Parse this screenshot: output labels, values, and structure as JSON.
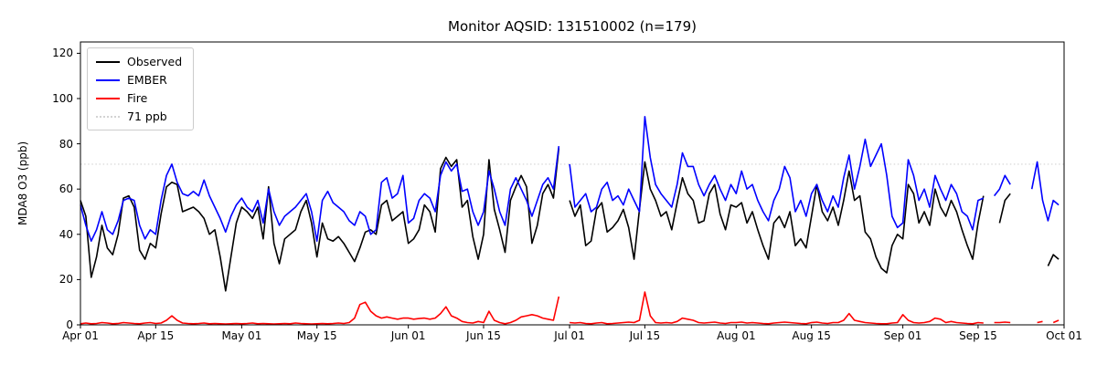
{
  "chart_data": {
    "type": "line",
    "title": "Monitor AQSID: 131510002 (n=179)",
    "ylabel": "MDA8 O3 (ppb)",
    "xlabel": "",
    "ylim": [
      0,
      125
    ],
    "xlim_days": [
      0,
      183
    ],
    "grid": false,
    "legend_position": "upper left",
    "y_ticks": [
      0,
      20,
      40,
      60,
      80,
      100,
      120
    ],
    "x_ticks": [
      {
        "day": 0,
        "label": "Apr 01"
      },
      {
        "day": 14,
        "label": "Apr 15"
      },
      {
        "day": 30,
        "label": "May 01"
      },
      {
        "day": 44,
        "label": "May 15"
      },
      {
        "day": 61,
        "label": "Jun 01"
      },
      {
        "day": 75,
        "label": "Jun 15"
      },
      {
        "day": 91,
        "label": "Jul 01"
      },
      {
        "day": 105,
        "label": "Jul 15"
      },
      {
        "day": 122,
        "label": "Aug 01"
      },
      {
        "day": 136,
        "label": "Aug 15"
      },
      {
        "day": 153,
        "label": "Sep 01"
      },
      {
        "day": 167,
        "label": "Sep 15"
      },
      {
        "day": 183,
        "label": "Oct 01"
      }
    ],
    "threshold": {
      "value": 71,
      "label": "71 ppb",
      "color": "#d3d3d3",
      "style": "dotted"
    },
    "legend": [
      {
        "label": "Observed",
        "color": "#000000",
        "style": "solid"
      },
      {
        "label": "EMBER",
        "color": "#0000ff",
        "style": "solid"
      },
      {
        "label": "Fire",
        "color": "#ff0000",
        "style": "solid"
      },
      {
        "label": "71 ppb",
        "color": "#d3d3d3",
        "style": "dotted"
      }
    ],
    "series": [
      {
        "name": "Observed",
        "color": "#000000",
        "values": [
          55,
          48,
          21,
          30,
          44,
          34,
          31,
          40,
          56,
          57,
          52,
          33,
          29,
          36,
          34,
          49,
          61,
          63,
          62,
          50,
          51,
          52,
          50,
          47,
          40,
          42,
          30,
          15,
          30,
          45,
          52,
          50,
          47,
          52,
          38,
          61,
          36,
          27,
          38,
          40,
          42,
          50,
          55,
          45,
          30,
          45,
          38,
          37,
          39,
          36,
          32,
          28,
          34,
          41,
          42,
          40,
          53,
          55,
          46,
          48,
          50,
          36,
          38,
          42,
          53,
          50,
          41,
          69,
          74,
          70,
          73,
          52,
          55,
          39,
          29,
          40,
          73,
          51,
          42,
          32,
          55,
          61,
          66,
          61,
          36,
          44,
          58,
          62,
          56,
          78,
          null,
          55,
          48,
          53,
          35,
          37,
          51,
          54,
          41,
          43,
          46,
          51,
          43,
          29,
          51,
          72,
          60,
          55,
          48,
          50,
          42,
          54,
          65,
          58,
          55,
          45,
          46,
          58,
          62,
          49,
          42,
          53,
          52,
          54,
          45,
          50,
          42,
          35,
          29,
          45,
          48,
          43,
          50,
          35,
          38,
          34,
          48,
          62,
          50,
          46,
          52,
          44,
          55,
          68,
          55,
          57,
          41,
          38,
          30,
          25,
          23,
          35,
          40,
          38,
          62,
          58,
          45,
          50,
          44,
          60,
          52,
          48,
          55,
          50,
          42,
          35,
          29,
          45,
          57,
          null,
          null,
          45,
          55,
          58,
          null,
          null,
          null,
          null,
          null,
          null,
          26,
          31,
          29
        ]
      },
      {
        "name": "EMBER",
        "color": "#0000ff",
        "values": [
          53,
          44,
          37,
          42,
          50,
          42,
          40,
          46,
          55,
          56,
          55,
          44,
          38,
          42,
          40,
          55,
          66,
          71,
          63,
          58,
          57,
          59,
          57,
          64,
          57,
          52,
          47,
          41,
          48,
          53,
          56,
          52,
          50,
          55,
          45,
          60,
          50,
          44,
          48,
          50,
          52,
          55,
          58,
          50,
          37,
          55,
          59,
          54,
          52,
          50,
          46,
          44,
          50,
          48,
          40,
          42,
          63,
          65,
          56,
          58,
          66,
          45,
          47,
          55,
          58,
          56,
          50,
          66,
          72,
          68,
          71,
          59,
          60,
          50,
          44,
          50,
          68,
          60,
          50,
          44,
          60,
          65,
          60,
          55,
          48,
          55,
          62,
          65,
          60,
          79,
          null,
          71,
          52,
          55,
          58,
          50,
          52,
          60,
          63,
          55,
          57,
          53,
          60,
          55,
          50,
          92,
          74,
          62,
          58,
          55,
          52,
          62,
          76,
          70,
          70,
          62,
          57,
          62,
          66,
          60,
          55,
          62,
          58,
          68,
          60,
          62,
          55,
          50,
          46,
          55,
          60,
          70,
          65,
          50,
          55,
          48,
          58,
          62,
          55,
          50,
          57,
          52,
          65,
          75,
          60,
          70,
          82,
          70,
          75,
          80,
          66,
          48,
          43,
          45,
          73,
          66,
          55,
          60,
          52,
          66,
          60,
          55,
          62,
          58,
          50,
          48,
          42,
          55,
          56,
          null,
          57,
          60,
          66,
          62,
          null,
          null,
          null,
          60,
          72,
          55,
          46,
          55,
          53
        ]
      },
      {
        "name": "Fire",
        "color": "#ff0000",
        "values": [
          0.5,
          0.8,
          0.5,
          0.6,
          1,
          0.8,
          0.5,
          0.6,
          1,
          0.8,
          0.6,
          0.5,
          0.8,
          1,
          0.6,
          0.8,
          2,
          4,
          2,
          0.8,
          0.6,
          0.5,
          0.6,
          0.8,
          0.5,
          0.6,
          0.5,
          0.4,
          0.5,
          0.6,
          0.5,
          0.6,
          0.8,
          0.5,
          0.6,
          0.5,
          0.4,
          0.5,
          0.6,
          0.5,
          0.8,
          0.6,
          0.5,
          0.4,
          0.5,
          0.6,
          0.5,
          0.6,
          0.8,
          0.6,
          1,
          3,
          9,
          10,
          6,
          4,
          3,
          3.5,
          3,
          2.5,
          3,
          3,
          2.5,
          2.8,
          3,
          2.5,
          3,
          5,
          8,
          4,
          3,
          1.5,
          1,
          0.8,
          1.5,
          1,
          6,
          2,
          1,
          0.5,
          1,
          2,
          3.5,
          4,
          4.5,
          4,
          3,
          2.5,
          2,
          12.5,
          null,
          1,
          0.8,
          1,
          0.6,
          0.5,
          0.8,
          1,
          0.5,
          0.6,
          0.8,
          1,
          1.2,
          1,
          2,
          14.5,
          4,
          1,
          0.8,
          1,
          0.8,
          1.5,
          3,
          2.5,
          2,
          1,
          0.8,
          1,
          1.2,
          0.8,
          0.6,
          1,
          1,
          1.2,
          0.8,
          1,
          0.8,
          0.6,
          0.5,
          0.8,
          1,
          1.2,
          1,
          0.8,
          0.6,
          0.5,
          1,
          1.2,
          0.8,
          0.6,
          1,
          1,
          2,
          5,
          2,
          1.5,
          1,
          0.8,
          0.6,
          0.5,
          0.5,
          0.8,
          1,
          4.5,
          2,
          1,
          0.8,
          1,
          1.5,
          3,
          2.5,
          1,
          1.5,
          1,
          0.8,
          0.6,
          0.5,
          1,
          0.8,
          null,
          1,
          1,
          1.2,
          1,
          null,
          null,
          null,
          null,
          1,
          1.5,
          null,
          1,
          2
        ]
      }
    ]
  }
}
